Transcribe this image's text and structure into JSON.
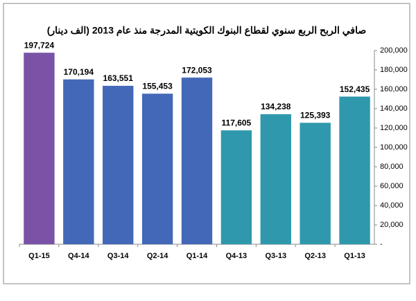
{
  "chart_data": {
    "type": "bar",
    "title": "صافي الربح الربع سنوي لقطاع البنوك الكويتية المدرجة منذ عام 2013 (الف دينار)",
    "categories": [
      "Q1-15",
      "Q4-14",
      "Q3-14",
      "Q2-14",
      "Q1-14",
      "Q4-13",
      "Q3-13",
      "Q2-13",
      "Q1-13"
    ],
    "values": [
      197724,
      170194,
      163551,
      155453,
      172053,
      117605,
      134238,
      125393,
      152435
    ],
    "value_labels": [
      "197,724",
      "170,194",
      "163,551",
      "155,453",
      "172,053",
      "117,605",
      "134,238",
      "125,393",
      "152,435"
    ],
    "colors": [
      "#7a53a6",
      "#4468b8",
      "#4468b8",
      "#4468b8",
      "#4468b8",
      "#2f98ad",
      "#2f98ad",
      "#2f98ad",
      "#2f98ad"
    ],
    "ylim": [
      0,
      200000
    ],
    "yticks": [
      {
        "value": 0,
        "label": "-"
      },
      {
        "value": 20000,
        "label": "20,000"
      },
      {
        "value": 40000,
        "label": "40,000"
      },
      {
        "value": 60000,
        "label": "60,000"
      },
      {
        "value": 80000,
        "label": "80,000"
      },
      {
        "value": 100000,
        "label": "100,000"
      },
      {
        "value": 120000,
        "label": "120,000"
      },
      {
        "value": 140000,
        "label": "140,000"
      },
      {
        "value": 160000,
        "label": "160,000"
      },
      {
        "value": 180000,
        "label": "180,000"
      },
      {
        "value": 200000,
        "label": "200,000"
      }
    ],
    "y_axis_side": "right",
    "grid": false
  }
}
